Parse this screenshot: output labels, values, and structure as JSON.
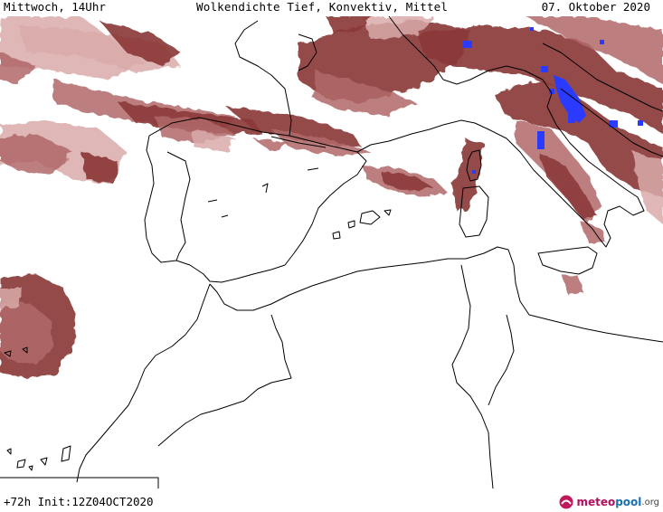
{
  "header": {
    "weekday_time": "Mittwoch, 14Uhr",
    "title": "Wolkendichte  Tief, Konvektiv, Mittel",
    "date": "07. Oktober 2020"
  },
  "footer": {
    "forecast_info": "+72h Init:12Z04OCT2020"
  },
  "logo": {
    "part1": "meteo",
    "part2": "pool",
    "part3": ".org"
  },
  "colors": {
    "cloud_dark": "#8c3a3a",
    "cloud_mid": "#b06868",
    "cloud_light": "#d9aaaa",
    "convective": "#2a3aff",
    "coastline": "#000000",
    "background": "#ffffff"
  },
  "icons": {
    "logo": "meteopool-logo-icon"
  }
}
